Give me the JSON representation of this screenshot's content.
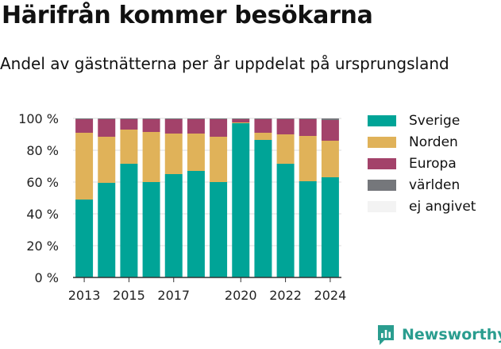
{
  "header": {
    "title": "Härifrån kommer besökarna",
    "subtitle": "Andel av gästnätterna per år uppdelat på ursprungsland"
  },
  "brand": {
    "name": "Newsworthy",
    "icon": "newsworthy-logo-icon",
    "color": "#2a9d8f"
  },
  "chart_data": {
    "type": "bar",
    "stacked": true,
    "categories": [
      "2013",
      "2014",
      "2015",
      "2016",
      "2017",
      "2018",
      "2019",
      "2020",
      "2021",
      "2022",
      "2023",
      "2024"
    ],
    "x_tick_labels": [
      "2013",
      "2015",
      "2017",
      "2020",
      "2022",
      "2024"
    ],
    "y_ticks": [
      "0 %",
      "20 %",
      "40 %",
      "60 %",
      "80 %",
      "100 %"
    ],
    "ylim": [
      0,
      100
    ],
    "grid": true,
    "legend_position": "right",
    "series": [
      {
        "name": "Sverige",
        "color": "#00a497",
        "values": [
          49,
          59.5,
          71.5,
          60,
          65,
          67,
          60,
          97,
          86.5,
          71.5,
          60.5,
          63
        ]
      },
      {
        "name": "Norden",
        "color": "#e0b259",
        "values": [
          42,
          29,
          21.5,
          31.5,
          25.5,
          23.5,
          28.5,
          0.5,
          4.5,
          18.5,
          28.5,
          23
        ]
      },
      {
        "name": "Europa",
        "color": "#a3426a",
        "values": [
          8.5,
          11,
          6.5,
          8,
          9,
          9,
          11,
          2,
          8.5,
          9.5,
          10.5,
          13
        ]
      },
      {
        "name": "världen",
        "color": "#75777b",
        "values": [
          0.5,
          0.5,
          0.5,
          0.5,
          0.5,
          0.5,
          0.5,
          0.5,
          0.5,
          0.5,
          0.5,
          1
        ]
      },
      {
        "name": "ej angivet",
        "color": "#f3f3f3",
        "values": [
          0,
          0,
          0,
          0,
          0,
          0,
          0,
          0,
          0,
          0,
          0,
          0
        ]
      }
    ]
  }
}
